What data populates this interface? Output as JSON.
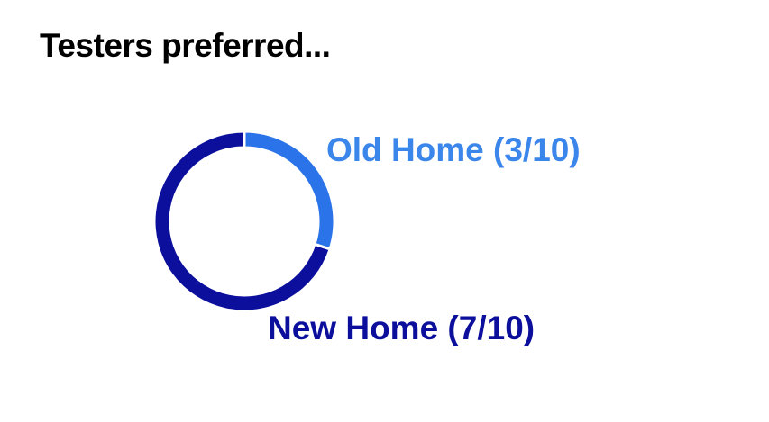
{
  "title": "Testers preferred...",
  "chart_data": {
    "type": "pie",
    "variant": "donut",
    "title": "Testers preferred...",
    "slices": [
      {
        "label": "Old Home (3/10)",
        "value": 3,
        "color": "#2a73e8"
      },
      {
        "label": "New Home (7/10)",
        "value": 7,
        "color": "#0b0f9c"
      }
    ],
    "total": 10,
    "legend": "direct labels"
  },
  "label_colors": {
    "Old Home (3/10)": "#3b86ea",
    "New Home (7/10)": "#0b0f9c"
  }
}
